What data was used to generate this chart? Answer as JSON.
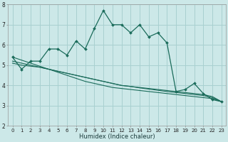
{
  "xlabel": "Humidex (Indice chaleur)",
  "xlim": [
    -0.5,
    23.5
  ],
  "ylim": [
    2,
    8
  ],
  "yticks": [
    2,
    3,
    4,
    5,
    6,
    7,
    8
  ],
  "xticks": [
    0,
    1,
    2,
    3,
    4,
    5,
    6,
    7,
    8,
    9,
    10,
    11,
    12,
    13,
    14,
    15,
    16,
    17,
    18,
    19,
    20,
    21,
    22,
    23
  ],
  "bg_color": "#cce8e8",
  "grid_color": "#a8d0d0",
  "line_color": "#1a6b5a",
  "series_main": [
    5.4,
    4.8,
    5.2,
    5.2,
    5.8,
    5.8,
    5.5,
    6.2,
    5.8,
    6.8,
    7.7,
    7.0,
    7.0,
    6.6,
    7.0,
    6.4,
    6.6,
    6.1,
    3.7,
    3.8,
    4.1,
    3.6,
    3.3,
    3.2
  ],
  "series_line1": [
    5.4,
    5.25,
    5.1,
    4.95,
    4.8,
    4.65,
    4.5,
    4.35,
    4.2,
    4.1,
    4.0,
    3.9,
    3.85,
    3.8,
    3.75,
    3.7,
    3.65,
    3.6,
    3.55,
    3.5,
    3.45,
    3.4,
    3.35,
    3.2
  ],
  "series_line2": [
    5.2,
    5.1,
    5.0,
    4.9,
    4.8,
    4.7,
    4.6,
    4.5,
    4.4,
    4.3,
    4.2,
    4.1,
    4.0,
    3.95,
    3.9,
    3.85,
    3.8,
    3.75,
    3.7,
    3.65,
    3.6,
    3.55,
    3.45,
    3.2
  ],
  "series_line3": [
    5.1,
    5.0,
    4.95,
    4.9,
    4.8,
    4.7,
    4.6,
    4.5,
    4.4,
    4.3,
    4.2,
    4.1,
    4.0,
    3.95,
    3.88,
    3.82,
    3.76,
    3.7,
    3.65,
    3.6,
    3.55,
    3.5,
    3.4,
    3.2
  ]
}
